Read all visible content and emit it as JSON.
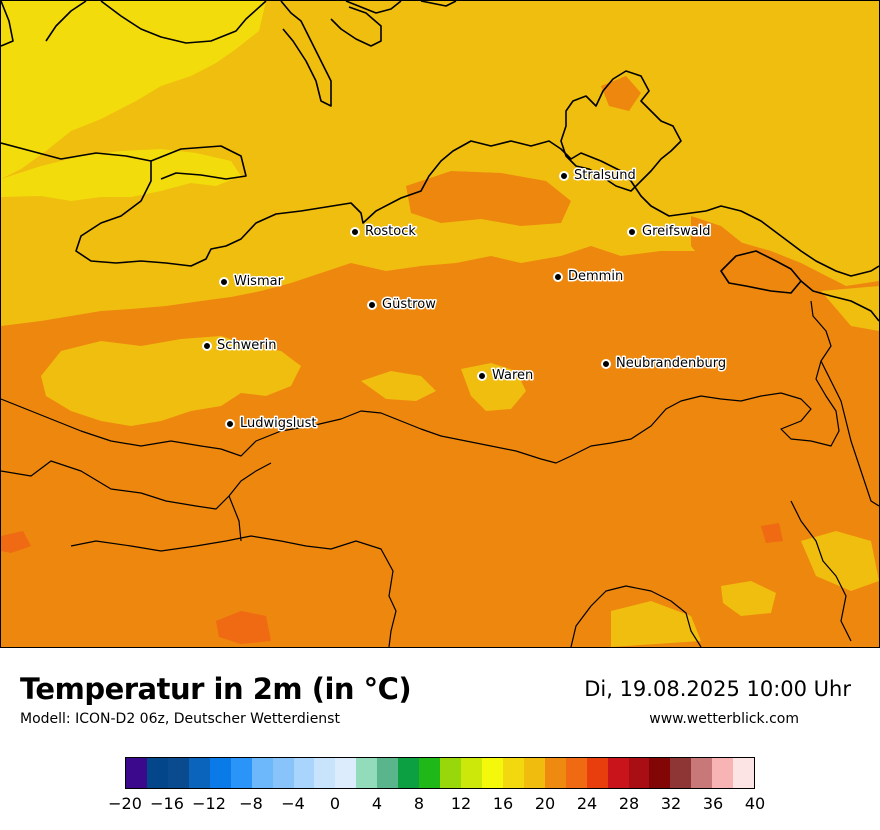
{
  "header": {
    "title": "Temperatur in 2m (in °C)",
    "subtitle": "Modell: ICON-D2 06z, Deutscher Wetterdienst",
    "datetime": "Di, 19.08.2025 10:00 Uhr",
    "website": "www.wetterblick.com"
  },
  "map": {
    "cities": [
      {
        "name": "Stralsund"
      },
      {
        "name": "Rostock"
      },
      {
        "name": "Greifswald"
      },
      {
        "name": "Wismar"
      },
      {
        "name": "Demmin"
      },
      {
        "name": "Güstrow"
      },
      {
        "name": "Schwerin"
      },
      {
        "name": "Neubrandenburg"
      },
      {
        "name": "Waren"
      },
      {
        "name": "Ludwigslust"
      }
    ],
    "colors": {
      "value_16_18": "#f2dc0c",
      "value_18_20": "#f0be0e",
      "value_20_22": "#ee870e",
      "value_22_24": "#ef6a12",
      "borders": "#000000"
    }
  },
  "legend": {
    "tick_labels": [
      "−20",
      "−16",
      "−12",
      "−8",
      "−4",
      "0",
      "4",
      "8",
      "12",
      "16",
      "20",
      "24",
      "28",
      "32",
      "36",
      "40"
    ],
    "colors": [
      "#3b0a8c",
      "#03468a",
      "#0a4a8f",
      "#0a64bb",
      "#0a7ae8",
      "#2a94f8",
      "#6cb8fa",
      "#88c4fa",
      "#a9d4fb",
      "#c8e4fd",
      "#dcecfd",
      "#92dcbc",
      "#5ab48c",
      "#0ca042",
      "#20b818",
      "#98d80a",
      "#cce80a",
      "#f4f80a",
      "#f2d80e",
      "#f0bc0e",
      "#ee8a10",
      "#ef6a12",
      "#e83e0e",
      "#c8141a",
      "#a80e14",
      "#820606",
      "#8e3636",
      "#c87878",
      "#f8b4b4",
      "#fde4e4"
    ]
  }
}
